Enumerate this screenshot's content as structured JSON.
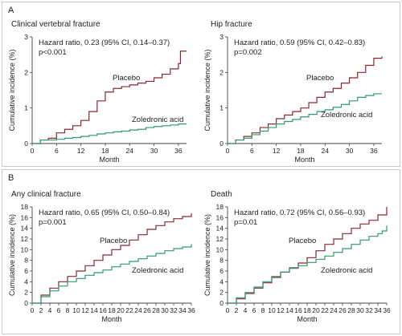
{
  "figure": {
    "section_a_letter": "A",
    "section_b_letter": "B"
  },
  "colors": {
    "placebo": "#8a2730",
    "zoledronic": "#2e9a6e"
  },
  "chart_data": [
    {
      "type": "line",
      "title": "Clinical vertebral fracture",
      "stat_line1": "Hazard ratio, 0.23 (95% CI, 0.14–0.37)",
      "stat_line2": "p<0.001",
      "xlabel": "Month",
      "ylabel": "Cumulative incidence (%)",
      "xlim": [
        0,
        38
      ],
      "ylim": [
        0,
        3
      ],
      "xticks": [
        0,
        6,
        12,
        18,
        24,
        30,
        36
      ],
      "yticks": [
        0,
        1,
        2,
        3
      ],
      "series": [
        {
          "name": "Placebo",
          "x": [
            0,
            2,
            4,
            6,
            8,
            10,
            12,
            14,
            16,
            18,
            20,
            22,
            24,
            26,
            28,
            30,
            32,
            34,
            36,
            36.5,
            38
          ],
          "y": [
            0,
            0.1,
            0.15,
            0.3,
            0.4,
            0.5,
            0.65,
            0.9,
            1.2,
            1.45,
            1.55,
            1.6,
            1.65,
            1.7,
            1.75,
            1.85,
            1.95,
            2.1,
            2.25,
            2.6,
            2.6
          ]
        },
        {
          "name": "Zoledronic acid",
          "x": [
            0,
            2,
            4,
            6,
            8,
            10,
            12,
            14,
            16,
            18,
            20,
            22,
            24,
            26,
            28,
            30,
            32,
            34,
            36,
            38
          ],
          "y": [
            0,
            0.1,
            0.1,
            0.12,
            0.15,
            0.17,
            0.2,
            0.23,
            0.27,
            0.3,
            0.33,
            0.35,
            0.38,
            0.4,
            0.45,
            0.48,
            0.5,
            0.52,
            0.55,
            0.55
          ]
        }
      ]
    },
    {
      "type": "line",
      "title": "Hip fracture",
      "stat_line1": "Hazard ratio, 0.59 (95% CI, 0.42–0.83)",
      "stat_line2": "p=0.002",
      "xlabel": "Month",
      "ylabel": "Cumulative incidence (%)",
      "xlim": [
        0,
        38
      ],
      "ylim": [
        0,
        3
      ],
      "xticks": [
        0,
        6,
        12,
        18,
        24,
        30,
        36
      ],
      "yticks": [
        0,
        1,
        2,
        3
      ],
      "series": [
        {
          "name": "Placebo",
          "x": [
            0,
            2,
            4,
            6,
            8,
            10,
            12,
            14,
            16,
            18,
            20,
            22,
            24,
            26,
            28,
            30,
            32,
            34,
            36,
            38
          ],
          "y": [
            0,
            0.1,
            0.2,
            0.3,
            0.45,
            0.55,
            0.7,
            0.8,
            0.9,
            1.0,
            1.15,
            1.3,
            1.45,
            1.55,
            1.7,
            1.85,
            2.0,
            2.2,
            2.4,
            2.45
          ]
        },
        {
          "name": "Zoledronic acid",
          "x": [
            0,
            2,
            4,
            6,
            8,
            10,
            12,
            14,
            16,
            18,
            20,
            22,
            24,
            26,
            28,
            30,
            32,
            34,
            36,
            38
          ],
          "y": [
            0,
            0.1,
            0.15,
            0.25,
            0.35,
            0.45,
            0.55,
            0.62,
            0.68,
            0.75,
            0.82,
            0.9,
            0.95,
            1.02,
            1.1,
            1.2,
            1.3,
            1.35,
            1.4,
            1.4
          ]
        }
      ]
    },
    {
      "type": "line",
      "title": "Any clinical fracture",
      "stat_line1": "Hazard ratio, 0.65 (95% CI, 0.50–0.84)",
      "stat_line2": "p=0.001",
      "xlabel": "Month",
      "ylabel": "Cumulative incidence (%)",
      "xlim": [
        0,
        36
      ],
      "ylim": [
        0,
        18
      ],
      "xticks": [
        0,
        2,
        4,
        6,
        8,
        10,
        12,
        14,
        16,
        18,
        20,
        22,
        24,
        26,
        28,
        30,
        32,
        34,
        36
      ],
      "yticks": [
        0,
        2,
        4,
        6,
        8,
        10,
        12,
        14,
        16,
        18
      ],
      "series": [
        {
          "name": "Placebo",
          "x": [
            0,
            2,
            4,
            6,
            8,
            10,
            12,
            14,
            16,
            18,
            20,
            22,
            24,
            26,
            28,
            30,
            32,
            34,
            36
          ],
          "y": [
            0,
            1.5,
            2.8,
            4.0,
            5.0,
            6.0,
            7.0,
            8.0,
            9.0,
            10.0,
            10.8,
            11.8,
            12.8,
            13.8,
            14.5,
            15.2,
            15.8,
            16.2,
            16.8
          ]
        },
        {
          "name": "Zoledronic acid",
          "x": [
            0,
            2,
            4,
            6,
            8,
            10,
            12,
            14,
            16,
            18,
            20,
            22,
            24,
            26,
            28,
            30,
            32,
            34,
            36
          ],
          "y": [
            0,
            1.2,
            2.3,
            3.2,
            4.0,
            4.6,
            5.2,
            5.7,
            6.2,
            6.8,
            7.3,
            7.8,
            8.3,
            8.8,
            9.3,
            9.8,
            10.2,
            10.5,
            11.0
          ]
        }
      ]
    },
    {
      "type": "line",
      "title": "Death",
      "stat_line1": "Hazard ratio, 0.72 (95% CI, 0.56–0.93)",
      "stat_line2": "p=0.01",
      "xlabel": "Month",
      "ylabel": "Cumulative incidence (%)",
      "xlim": [
        0,
        36
      ],
      "ylim": [
        0,
        18
      ],
      "xticks": [
        0,
        2,
        4,
        6,
        8,
        10,
        12,
        14,
        16,
        18,
        20,
        22,
        24,
        26,
        28,
        30,
        32,
        34,
        36
      ],
      "yticks": [
        0,
        2,
        4,
        6,
        8,
        10,
        12,
        14,
        16,
        18
      ],
      "series": [
        {
          "name": "Placebo",
          "x": [
            0,
            2,
            4,
            6,
            8,
            10,
            12,
            14,
            16,
            18,
            20,
            22,
            24,
            26,
            28,
            30,
            32,
            34,
            36
          ],
          "y": [
            0,
            0.8,
            1.8,
            2.8,
            3.8,
            4.8,
            5.8,
            6.6,
            7.5,
            8.5,
            9.8,
            11.0,
            12.0,
            13.0,
            14.0,
            14.8,
            15.5,
            16.5,
            18.0
          ]
        },
        {
          "name": "Zoledronic acid",
          "x": [
            0,
            2,
            4,
            6,
            8,
            10,
            12,
            14,
            16,
            18,
            20,
            22,
            24,
            26,
            28,
            30,
            32,
            34,
            35,
            36
          ],
          "y": [
            0,
            1.0,
            2.0,
            3.0,
            4.0,
            5.0,
            5.8,
            6.5,
            7.0,
            7.6,
            8.2,
            8.8,
            9.5,
            10.2,
            11.0,
            11.8,
            12.5,
            13.0,
            13.5,
            14.5
          ]
        }
      ]
    }
  ]
}
